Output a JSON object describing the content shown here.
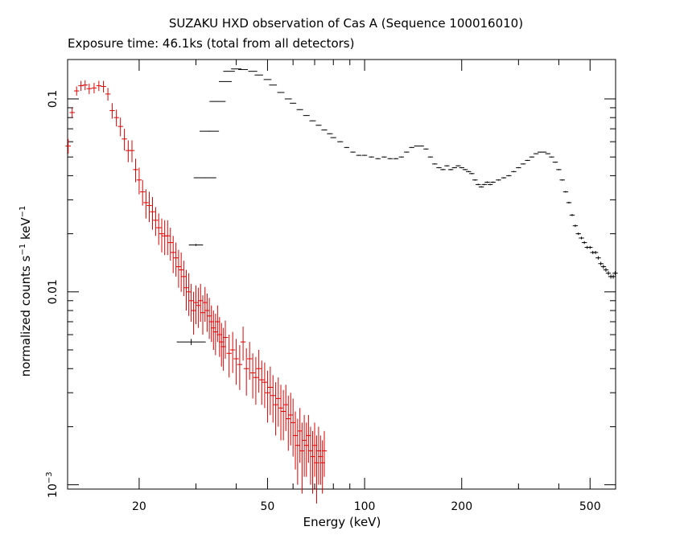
{
  "chart_data": {
    "type": "scatter",
    "title": "SUZAKU HXD observation of Cas A (Sequence 100016010)",
    "subtitle": "Exposure time: 46.1ks (total from all detectors)",
    "xlabel": "Energy (keV)",
    "ylabel": {
      "text_1": "normalized counts s",
      "exp_1": "−1",
      "text_2": " keV",
      "exp_2": "−1"
    },
    "x_scale": "log",
    "y_scale": "log",
    "xlim": [
      12,
      600
    ],
    "ylim": [
      0.00095,
      0.16
    ],
    "x_major_ticks": [
      {
        "value": 20,
        "label": "20"
      },
      {
        "value": 50,
        "label": "50"
      },
      {
        "value": 100,
        "label": "100"
      },
      {
        "value": 200,
        "label": "200"
      },
      {
        "value": 500,
        "label": "500"
      }
    ],
    "x_minor_ticks": [
      30,
      40,
      60,
      70,
      80,
      90,
      300,
      400
    ],
    "y_major_ticks": [
      {
        "value": 0.001,
        "label": "10",
        "exp": "−3"
      },
      {
        "value": 0.01,
        "label": "0.01"
      },
      {
        "value": 0.1,
        "label": "0.1"
      }
    ],
    "y_minor_ticks": [
      0.002,
      0.003,
      0.004,
      0.005,
      0.006,
      0.007,
      0.008,
      0.009,
      0.02,
      0.03,
      0.04,
      0.05,
      0.06,
      0.07,
      0.08,
      0.09
    ],
    "grid": false,
    "legend": "none",
    "series": [
      {
        "color": "#e00000",
        "points": [
          [
            12.05,
            0.057,
            0.005
          ],
          [
            12.4,
            0.085,
            0.005
          ],
          [
            12.8,
            0.11,
            0.006
          ],
          [
            13.2,
            0.117,
            0.007
          ],
          [
            13.6,
            0.118,
            0.007
          ],
          [
            14.0,
            0.113,
            0.007
          ],
          [
            14.5,
            0.114,
            0.007
          ],
          [
            15.0,
            0.117,
            0.007
          ],
          [
            15.5,
            0.116,
            0.008
          ],
          [
            16.0,
            0.106,
            0.008
          ],
          [
            16.5,
            0.087,
            0.008
          ],
          [
            17.0,
            0.08,
            0.008
          ],
          [
            17.5,
            0.072,
            0.008
          ],
          [
            18.0,
            0.062,
            0.008
          ],
          [
            18.5,
            0.054,
            0.007
          ],
          [
            19.0,
            0.054,
            0.007
          ],
          [
            19.5,
            0.043,
            0.006
          ],
          [
            20.0,
            0.038,
            0.006
          ],
          [
            20.5,
            0.033,
            0.005
          ],
          [
            21.0,
            0.029,
            0.005
          ],
          [
            21.5,
            0.028,
            0.005
          ],
          [
            22.0,
            0.026,
            0.005
          ],
          [
            22.5,
            0.0235,
            0.004
          ],
          [
            23.0,
            0.0215,
            0.004
          ],
          [
            23.5,
            0.02,
            0.004
          ],
          [
            24.0,
            0.0195,
            0.004
          ],
          [
            24.5,
            0.0195,
            0.004
          ],
          [
            25.0,
            0.018,
            0.0035
          ],
          [
            25.5,
            0.016,
            0.0035
          ],
          [
            26.0,
            0.015,
            0.003
          ],
          [
            26.5,
            0.0135,
            0.003
          ],
          [
            27.0,
            0.013,
            0.003
          ],
          [
            27.5,
            0.012,
            0.0025
          ],
          [
            28.0,
            0.0105,
            0.0025
          ],
          [
            28.5,
            0.01,
            0.0025
          ],
          [
            29.0,
            0.009,
            0.002
          ],
          [
            29.5,
            0.008,
            0.002
          ],
          [
            30.0,
            0.0088,
            0.002
          ],
          [
            30.5,
            0.0085,
            0.002
          ],
          [
            31.0,
            0.009,
            0.002
          ],
          [
            31.5,
            0.0078,
            0.0018
          ],
          [
            32.0,
            0.0088,
            0.0018
          ],
          [
            32.5,
            0.008,
            0.0018
          ],
          [
            33.0,
            0.0075,
            0.0018
          ],
          [
            33.5,
            0.007,
            0.0015
          ],
          [
            34.0,
            0.0065,
            0.0015
          ],
          [
            34.5,
            0.0062,
            0.0015
          ],
          [
            35.0,
            0.007,
            0.0015
          ],
          [
            35.5,
            0.006,
            0.0014
          ],
          [
            36.0,
            0.0055,
            0.0014
          ],
          [
            36.5,
            0.0052,
            0.0013
          ],
          [
            37.0,
            0.0058,
            0.0013
          ],
          [
            38.0,
            0.0048,
            0.0012
          ],
          [
            39.0,
            0.005,
            0.0012
          ],
          [
            40.0,
            0.0045,
            0.0012
          ],
          [
            41.0,
            0.0042,
            0.0011
          ],
          [
            42.0,
            0.0055,
            0.0011
          ],
          [
            43.0,
            0.004,
            0.0011
          ],
          [
            44.0,
            0.0045,
            0.001
          ],
          [
            45.0,
            0.0038,
            0.001
          ],
          [
            46.0,
            0.0036,
            0.001
          ],
          [
            47.0,
            0.004,
            0.001
          ],
          [
            48.0,
            0.0035,
            0.0009
          ],
          [
            49.0,
            0.0034,
            0.0009
          ],
          [
            50.0,
            0.003,
            0.0009
          ],
          [
            51.0,
            0.0032,
            0.0009
          ],
          [
            52.0,
            0.0029,
            0.0008
          ],
          [
            53.0,
            0.0026,
            0.0008
          ],
          [
            54.0,
            0.0028,
            0.0008
          ],
          [
            55.0,
            0.0025,
            0.0008
          ],
          [
            56.0,
            0.0024,
            0.0007
          ],
          [
            57.0,
            0.0026,
            0.0007
          ],
          [
            58.0,
            0.0022,
            0.0007
          ],
          [
            59.0,
            0.0023,
            0.0007
          ],
          [
            60.0,
            0.0021,
            0.0007
          ],
          [
            61.0,
            0.0018,
            0.0006
          ],
          [
            62.0,
            0.0016,
            0.0006
          ],
          [
            63.0,
            0.0019,
            0.0006
          ],
          [
            64.0,
            0.0015,
            0.0006
          ],
          [
            65.0,
            0.0017,
            0.0006
          ],
          [
            66.0,
            0.0016,
            0.0005
          ],
          [
            67.0,
            0.0018,
            0.0005
          ],
          [
            68.0,
            0.0015,
            0.0005
          ],
          [
            69.0,
            0.0014,
            0.0005
          ],
          [
            70.0,
            0.0016,
            0.0005
          ],
          [
            71.0,
            0.0013,
            0.0005
          ],
          [
            72.0,
            0.0015,
            0.0005
          ],
          [
            73.0,
            0.0014,
            0.0004
          ],
          [
            74.0,
            0.0013,
            0.0004
          ],
          [
            75.0,
            0.0015,
            0.0004
          ]
        ]
      },
      {
        "color": "#000000",
        "points": [
          [
            29.0,
            0.0055,
            0.0002,
            0.045
          ],
          [
            30.0,
            0.0175,
            0.0002,
            0.022
          ],
          [
            32.0,
            0.039,
            0.0002,
            0.035
          ],
          [
            33.0,
            0.068,
            0.0003,
            0.03
          ],
          [
            35.0,
            0.097,
            0.0003,
            0.025
          ],
          [
            37.0,
            0.123,
            0.0003,
            0.02
          ],
          [
            38.0,
            0.139,
            0.0003,
            0.018
          ],
          [
            40.0,
            0.143,
            0.0003,
            0.016
          ],
          [
            42.0,
            0.142,
            0.0003,
            0.015
          ],
          [
            45.0,
            0.139,
            0.0003,
            0.014
          ],
          [
            47.0,
            0.133,
            0.0003,
            0.013
          ],
          [
            50.0,
            0.126,
            0.0003,
            0.012
          ],
          [
            52.0,
            0.118,
            0.0003,
            0.012
          ],
          [
            55.0,
            0.108,
            0.0003,
            0.011
          ],
          [
            58.0,
            0.1,
            0.0003,
            0.011
          ],
          [
            60.0,
            0.095,
            0.0003,
            0.01
          ],
          [
            63.0,
            0.088,
            0.0003,
            0.01
          ],
          [
            66.0,
            0.082,
            0.0003,
            0.01
          ],
          [
            69.0,
            0.077,
            0.0003,
            0.01
          ],
          [
            72.0,
            0.073,
            0.0003,
            0.009
          ],
          [
            75.0,
            0.069,
            0.0003,
            0.009
          ],
          [
            78.0,
            0.066,
            0.0003,
            0.009
          ],
          [
            80.0,
            0.063,
            0.0003,
            0.009
          ],
          [
            84.0,
            0.06,
            0.0003,
            0.009
          ],
          [
            88.0,
            0.056,
            0.0003,
            0.008
          ],
          [
            92.0,
            0.053,
            0.0003,
            0.008
          ],
          [
            96.0,
            0.051,
            0.0003,
            0.008
          ],
          [
            100.0,
            0.051,
            0.0003,
            0.008
          ],
          [
            105.0,
            0.05,
            0.0003,
            0.008
          ],
          [
            110.0,
            0.049,
            0.0003,
            0.008
          ],
          [
            115.0,
            0.05,
            0.0003,
            0.008
          ],
          [
            120.0,
            0.049,
            0.0003,
            0.008
          ],
          [
            125.0,
            0.049,
            0.0003,
            0.008
          ],
          [
            130.0,
            0.05,
            0.0003,
            0.008
          ],
          [
            135.0,
            0.053,
            0.0003,
            0.008
          ],
          [
            140.0,
            0.056,
            0.0003,
            0.008
          ],
          [
            145.0,
            0.057,
            0.0003,
            0.008
          ],
          [
            150.0,
            0.057,
            0.0003,
            0.008
          ],
          [
            155.0,
            0.055,
            0.0003,
            0.008
          ],
          [
            160.0,
            0.05,
            0.0003,
            0.008
          ],
          [
            165.0,
            0.046,
            0.0003,
            0.008
          ],
          [
            170.0,
            0.044,
            0.0003,
            0.008
          ],
          [
            175.0,
            0.043,
            0.0003,
            0.008
          ],
          [
            180.0,
            0.045,
            0.0003,
            0.008
          ],
          [
            185.0,
            0.043,
            0.0003,
            0.008
          ],
          [
            190.0,
            0.044,
            0.0003,
            0.008
          ],
          [
            195.0,
            0.045,
            0.0003,
            0.008
          ],
          [
            200.0,
            0.044,
            0.0003,
            0.008
          ],
          [
            205.0,
            0.043,
            0.0003,
            0.008
          ],
          [
            210.0,
            0.042,
            0.0003,
            0.008
          ],
          [
            215.0,
            0.041,
            0.0003,
            0.008
          ],
          [
            220.0,
            0.038,
            0.0003,
            0.008
          ],
          [
            225.0,
            0.036,
            0.0003,
            0.008
          ],
          [
            230.0,
            0.035,
            0.0003,
            0.008
          ],
          [
            235.0,
            0.036,
            0.0003,
            0.008
          ],
          [
            240.0,
            0.037,
            0.0003,
            0.008
          ],
          [
            245.0,
            0.036,
            0.0003,
            0.008
          ],
          [
            250.0,
            0.037,
            0.0003,
            0.008
          ],
          [
            260.0,
            0.038,
            0.0003,
            0.008
          ],
          [
            270.0,
            0.039,
            0.0003,
            0.008
          ],
          [
            280.0,
            0.04,
            0.0003,
            0.008
          ],
          [
            290.0,
            0.042,
            0.0003,
            0.008
          ],
          [
            300.0,
            0.044,
            0.0003,
            0.008
          ],
          [
            310.0,
            0.046,
            0.0003,
            0.008
          ],
          [
            320.0,
            0.048,
            0.0003,
            0.008
          ],
          [
            330.0,
            0.05,
            0.0003,
            0.008
          ],
          [
            340.0,
            0.052,
            0.0003,
            0.008
          ],
          [
            350.0,
            0.053,
            0.0003,
            0.008
          ],
          [
            360.0,
            0.053,
            0.0003,
            0.008
          ],
          [
            370.0,
            0.052,
            0.0003,
            0.008
          ],
          [
            380.0,
            0.05,
            0.0003,
            0.008
          ],
          [
            390.0,
            0.047,
            0.0003,
            0.008
          ],
          [
            400.0,
            0.043,
            0.0003,
            0.008
          ],
          [
            410.0,
            0.038,
            0.0003,
            0.008
          ],
          [
            420.0,
            0.033,
            0.0003,
            0.008
          ],
          [
            430.0,
            0.029,
            0.0003,
            0.008
          ],
          [
            440.0,
            0.025,
            0.0003,
            0.008
          ],
          [
            450.0,
            0.022,
            0.0003,
            0.008
          ],
          [
            460.0,
            0.02,
            0.0003,
            0.008
          ],
          [
            470.0,
            0.019,
            0.0003,
            0.008
          ],
          [
            480.0,
            0.018,
            0.0003,
            0.008
          ],
          [
            490.0,
            0.017,
            0.0003,
            0.008
          ],
          [
            500.0,
            0.017,
            0.0003,
            0.008
          ],
          [
            510.0,
            0.016,
            0.0003,
            0.008
          ],
          [
            520.0,
            0.016,
            0.0003,
            0.008
          ],
          [
            530.0,
            0.015,
            0.0003,
            0.008
          ],
          [
            540.0,
            0.014,
            0.0003,
            0.008
          ],
          [
            550.0,
            0.0135,
            0.0003,
            0.008
          ],
          [
            560.0,
            0.013,
            0.0003,
            0.008
          ],
          [
            570.0,
            0.0125,
            0.0003,
            0.008
          ],
          [
            580.0,
            0.012,
            0.0003,
            0.008
          ],
          [
            590.0,
            0.012,
            0.0003,
            0.008
          ],
          [
            598.0,
            0.0125,
            0.0003,
            0.008
          ]
        ]
      }
    ]
  }
}
